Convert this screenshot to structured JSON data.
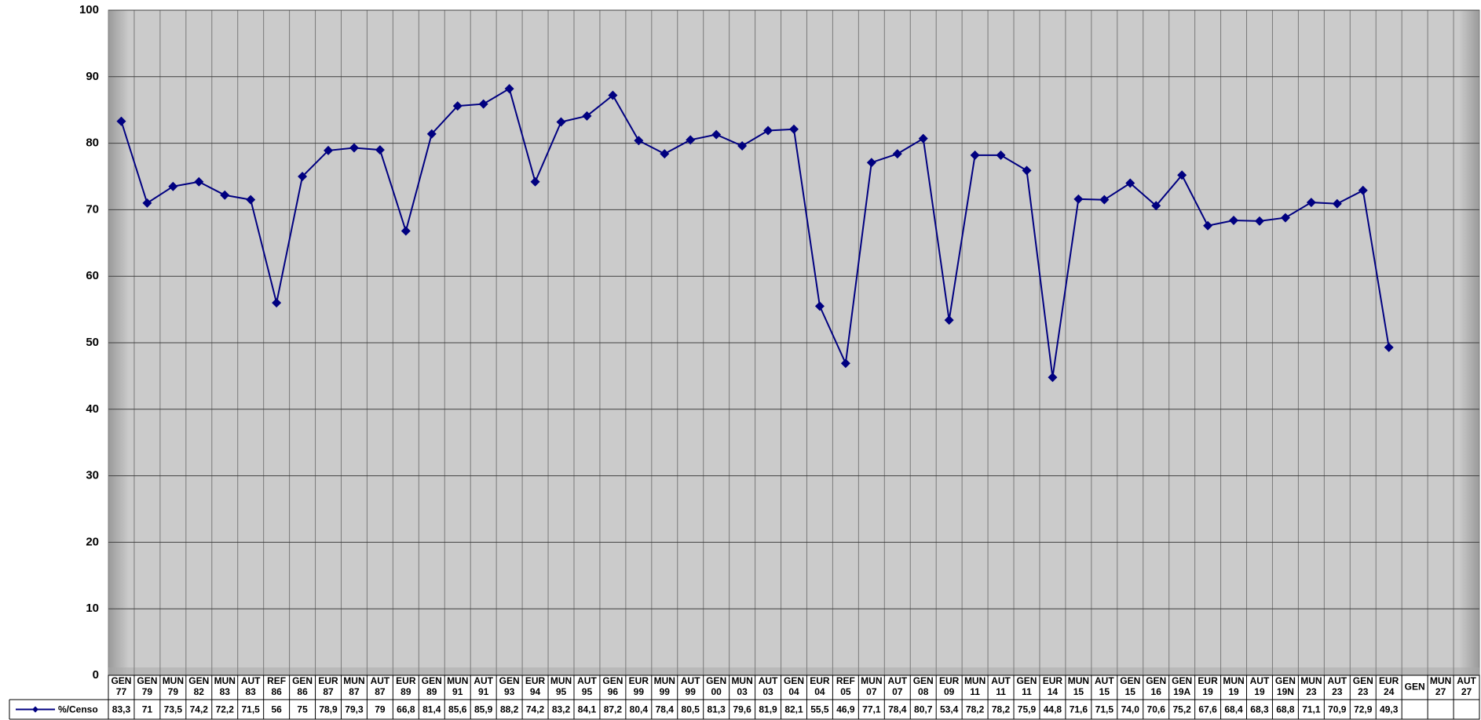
{
  "chart_data": {
    "type": "line",
    "categories": [
      "GEN 77",
      "GEN 79",
      "MUN 79",
      "GEN 82",
      "MUN 83",
      "AUT 83",
      "REF 86",
      "GEN 86",
      "EUR 87",
      "MUN 87",
      "AUT 87",
      "EUR 89",
      "GEN 89",
      "MUN 91",
      "AUT 91",
      "GEN 93",
      "EUR 94",
      "MUN 95",
      "AUT 95",
      "GEN 96",
      "EUR 99",
      "MUN 99",
      "AUT 99",
      "GEN 00",
      "MUN 03",
      "AUT 03",
      "GEN 04",
      "EUR 04",
      "REF 05",
      "MUN 07",
      "AUT 07",
      "GEN 08",
      "EUR 09",
      "MUN 11",
      "AUT 11",
      "GEN 11",
      "EUR 14",
      "MUN 15",
      "AUT 15",
      "GEN 15",
      "GEN 16",
      "GEN 19A",
      "EUR 19",
      "MUN 19",
      "AUT 19",
      "GEN 19N",
      "MUN 23",
      "AUT 23",
      "GEN 23",
      "EUR 24",
      "GEN",
      "MUN 27",
      "AUT 27"
    ],
    "series": [
      {
        "name": "%/Censo",
        "color": "#000080",
        "values": [
          83.3,
          71,
          73.5,
          74.2,
          72.2,
          71.5,
          56,
          75,
          78.9,
          79.3,
          79,
          66.8,
          81.4,
          85.6,
          85.9,
          88.2,
          74.2,
          83.2,
          84.1,
          87.2,
          80.4,
          78.4,
          80.5,
          81.3,
          79.6,
          81.9,
          82.1,
          55.5,
          46.9,
          77.1,
          78.4,
          80.7,
          53.4,
          78.2,
          78.2,
          75.9,
          44.8,
          71.6,
          71.5,
          74.0,
          70.6,
          75.2,
          67.6,
          68.4,
          68.3,
          68.8,
          71.1,
          70.9,
          72.9,
          49.3,
          null,
          null,
          null
        ],
        "value_labels": [
          "83,3",
          "71",
          "73,5",
          "74,2",
          "72,2",
          "71,5",
          "56",
          "75",
          "78,9",
          "79,3",
          "79",
          "66,8",
          "81,4",
          "85,6",
          "85,9",
          "88,2",
          "74,2",
          "83,2",
          "84,1",
          "87,2",
          "80,4",
          "78,4",
          "80,5",
          "81,3",
          "79,6",
          "81,9",
          "82,1",
          "55,5",
          "46,9",
          "77,1",
          "78,4",
          "80,7",
          "53,4",
          "78,2",
          "78,2",
          "75,9",
          "44,8",
          "71,6",
          "71,5",
          "74,0",
          "70,6",
          "75,2",
          "67,6",
          "68,4",
          "68,3",
          "68,8",
          "71,1",
          "70,9",
          "72,9",
          "49,3",
          null,
          null,
          null
        ]
      }
    ],
    "ylim": [
      0,
      100
    ],
    "yticks": [
      0,
      10,
      20,
      30,
      40,
      50,
      60,
      70,
      80,
      90,
      100
    ],
    "grid": true
  }
}
